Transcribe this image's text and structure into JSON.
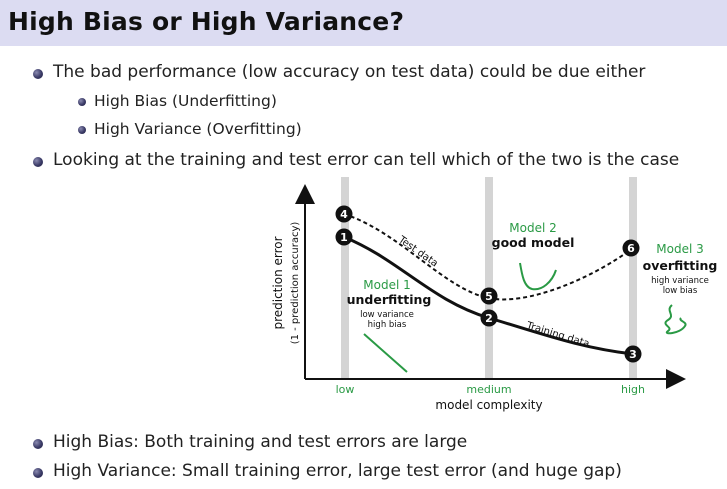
{
  "slide": {
    "title": "High Bias or High Variance?",
    "bullets": [
      "The bad performance (low accuracy on test data) could be due either",
      "Looking at the training and test error can tell which of the two is the case",
      "High Bias: Both training and test errors are large",
      "High Variance: Small training error, large test error (and huge gap)"
    ],
    "sub_bullets": [
      "High Bias (Underfitting)",
      "High Variance (Overfitting)"
    ]
  },
  "figure": {
    "y_axis_label": "prediction error",
    "y_axis_sublabel": "(1 - prediction accuracy)",
    "x_axis_label": "model complexity",
    "x_ticks": [
      "low",
      "medium",
      "high"
    ],
    "curve_labels": {
      "test": "Test data",
      "train": "Training data"
    },
    "markers": [
      "1",
      "2",
      "3",
      "4",
      "5",
      "6"
    ],
    "model1": {
      "name": "Model 1",
      "title": "underfitting",
      "detail1": "low variance",
      "detail2": "high bias"
    },
    "model2": {
      "name": "Model 2",
      "title": "good model"
    },
    "model3": {
      "name": "Model 3",
      "title": "overfitting",
      "detail1": "high variance",
      "detail2": "low bias"
    },
    "colors": {
      "green": "#2a9a45",
      "band": "#d4d4d4",
      "title_bar": "#dcdcf2",
      "bullet": "#3a3a66"
    }
  }
}
